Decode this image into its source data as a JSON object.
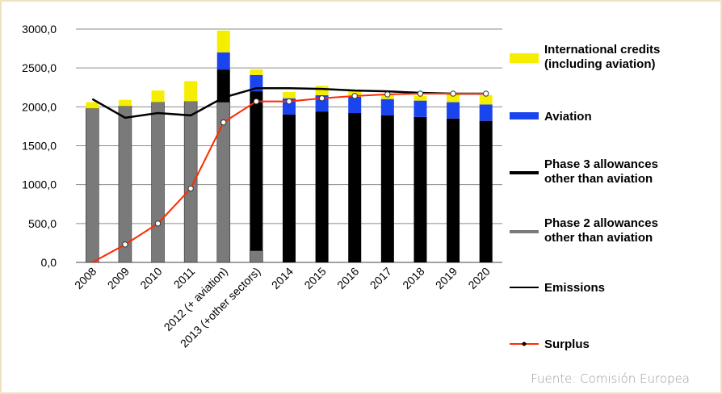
{
  "chart_data": {
    "type": "bar",
    "title": "",
    "xlabel": "",
    "ylabel": "",
    "ylim": [
      0,
      3000
    ],
    "ytick_labels": [
      "0,0",
      "500,0",
      "1000,0",
      "1500,0",
      "2000,0",
      "2500,0",
      "3000,0"
    ],
    "ytick_values": [
      0,
      500,
      1000,
      1500,
      2000,
      2500,
      3000
    ],
    "grid": true,
    "legend_position": "right",
    "categories": [
      "2008",
      "2009",
      "2010",
      "2011",
      "2012 (+ aviation)",
      "2013 (+other sectors)",
      "2014",
      "2015",
      "2016",
      "2017",
      "2018",
      "2019",
      "2020"
    ],
    "stacked_series": [
      {
        "name": "Phase 2 allowances other than aviation",
        "color": "#7a7a7a",
        "values": [
          1980,
          2010,
          2060,
          2070,
          2060,
          150,
          0,
          0,
          0,
          0,
          0,
          0,
          0
        ]
      },
      {
        "name": "Phase 3 allowances other than aviation",
        "color": "#000000",
        "values": [
          0,
          0,
          0,
          0,
          420,
          2050,
          1900,
          1940,
          1920,
          1890,
          1870,
          1850,
          1820
        ]
      },
      {
        "name": "Aviation",
        "color": "#1a44ee",
        "values": [
          0,
          0,
          0,
          0,
          220,
          210,
          210,
          210,
          210,
          210,
          210,
          210,
          210
        ]
      },
      {
        "name": "International credits (including aviation)",
        "color": "#f6ee00",
        "values": [
          80,
          80,
          150,
          260,
          280,
          70,
          80,
          120,
          80,
          50,
          60,
          100,
          120
        ]
      }
    ],
    "line_series": [
      {
        "name": "Emissions",
        "color": "#000000",
        "values": [
          2100,
          1860,
          1920,
          1890,
          2120,
          2240,
          2240,
          2230,
          2210,
          2200,
          2180,
          2170,
          2170
        ]
      },
      {
        "name": "Surplus",
        "color": "#ff2a00",
        "values": [
          0,
          230,
          500,
          950,
          1800,
          2070,
          2070,
          2110,
          2140,
          2160,
          2170,
          2170,
          2170
        ]
      }
    ],
    "legend_order": [
      "International credits (including aviation)",
      "Aviation",
      "Phase 3 allowances other than aviation",
      "Phase 2 allowances other than aviation",
      "Emissions",
      "Surplus"
    ],
    "legend_lines": {
      "International credits (including aviation)": [
        "International credits",
        "(including aviation)"
      ],
      "Aviation": [
        "Aviation"
      ],
      "Phase 3 allowances other than aviation": [
        "Phase 3 allowances",
        "other than aviation"
      ],
      "Phase 2 allowances other than aviation": [
        "Phase 2 allowances",
        "other than aviation"
      ],
      "Emissions": [
        "Emissions"
      ],
      "Surplus": [
        "Surplus"
      ]
    }
  },
  "source": "Fuente: Comisión Europea"
}
